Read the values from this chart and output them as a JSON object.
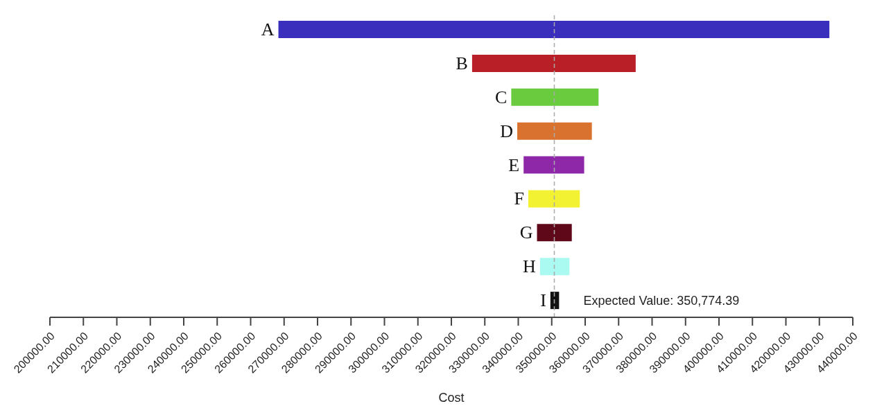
{
  "chart_data": {
    "type": "bar",
    "orientation": "horizontal",
    "xlabel": "Cost",
    "categories": [
      "A",
      "B",
      "C",
      "D",
      "E",
      "F",
      "G",
      "H",
      "I"
    ],
    "base": [
      268300,
      326200,
      337900,
      339700,
      341600,
      343000,
      345600,
      346500,
      349600
    ],
    "values": [
      164700,
      48900,
      26100,
      22300,
      18100,
      15400,
      10400,
      8800,
      2600
    ],
    "colors": [
      "#3a2fbc",
      "#b81f27",
      "#6acb3e",
      "#d9722e",
      "#8e27a8",
      "#f3f232",
      "#5f0819",
      "#aafaf2",
      "#111111"
    ],
    "xlim": [
      200000,
      440000
    ],
    "xticks": [
      {
        "value": 200000,
        "label": "200000.00"
      },
      {
        "value": 210000,
        "label": "210000.00"
      },
      {
        "value": 220000,
        "label": "220000.00"
      },
      {
        "value": 230000,
        "label": "230000.00"
      },
      {
        "value": 240000,
        "label": "240000.00"
      },
      {
        "value": 250000,
        "label": "250000.00"
      },
      {
        "value": 260000,
        "label": "260000.00"
      },
      {
        "value": 270000,
        "label": "270000.00"
      },
      {
        "value": 280000,
        "label": "280000.00"
      },
      {
        "value": 290000,
        "label": "290000.00"
      },
      {
        "value": 300000,
        "label": "300000.00"
      },
      {
        "value": 310000,
        "label": "310000.00"
      },
      {
        "value": 320000,
        "label": "320000.00"
      },
      {
        "value": 330000,
        "label": "330000.00"
      },
      {
        "value": 340000,
        "label": "340000.00"
      },
      {
        "value": 350000,
        "label": "350000.00"
      },
      {
        "value": 360000,
        "label": "360000.00"
      },
      {
        "value": 370000,
        "label": "370000.00"
      },
      {
        "value": 380000,
        "label": "380000.00"
      },
      {
        "value": 390000,
        "label": "390000.00"
      },
      {
        "value": 400000,
        "label": "400000.00"
      },
      {
        "value": 410000,
        "label": "410000.00"
      },
      {
        "value": 420000,
        "label": "420000.00"
      },
      {
        "value": 430000,
        "label": "430000.00"
      },
      {
        "value": 440000,
        "label": "440000.00"
      }
    ],
    "ref_lines": [
      {
        "axis": "x",
        "value": 350774.39,
        "label": "Expected Value: 350,774.39",
        "color": "#aaaaaa",
        "line_style": "dashed"
      }
    ]
  }
}
